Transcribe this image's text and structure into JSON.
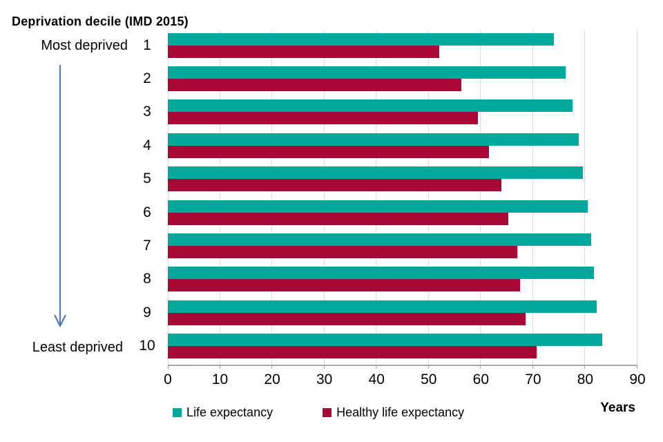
{
  "title": "Deprivation decile (IMD 2015)",
  "annotations": {
    "most_deprived": "Most deprived",
    "least_deprived": "Least deprived"
  },
  "colors": {
    "life_expectancy": "#00a79b",
    "healthy_life_expectancy": "#a60935",
    "arrow": "#4878b0",
    "gridline": "#d9d9d9",
    "axis_line": "#a6a6a6",
    "text": "#000000"
  },
  "chart_data": {
    "type": "bar",
    "orientation": "horizontal",
    "title": "Deprivation decile (IMD 2015)",
    "categories": [
      "1",
      "2",
      "3",
      "4",
      "5",
      "6",
      "7",
      "8",
      "9",
      "10"
    ],
    "category_axis_annotations": {
      "first": "Most deprived",
      "last": "Least deprived"
    },
    "series": [
      {
        "name": "Life expectancy",
        "color": "#00a79b",
        "values": [
          74.0,
          76.2,
          77.6,
          78.8,
          79.6,
          80.5,
          81.1,
          81.6,
          82.2,
          83.3
        ]
      },
      {
        "name": "Healthy life expectancy",
        "color": "#a60935",
        "values": [
          52.0,
          56.2,
          59.4,
          61.5,
          63.9,
          65.2,
          67.0,
          67.5,
          68.5,
          70.7
        ]
      }
    ],
    "xlabel": "Years",
    "xlim": [
      0,
      90
    ],
    "xticks": [
      0,
      10,
      20,
      30,
      40,
      50,
      60,
      70,
      80,
      90
    ],
    "grid": true,
    "legend_position": "bottom"
  }
}
